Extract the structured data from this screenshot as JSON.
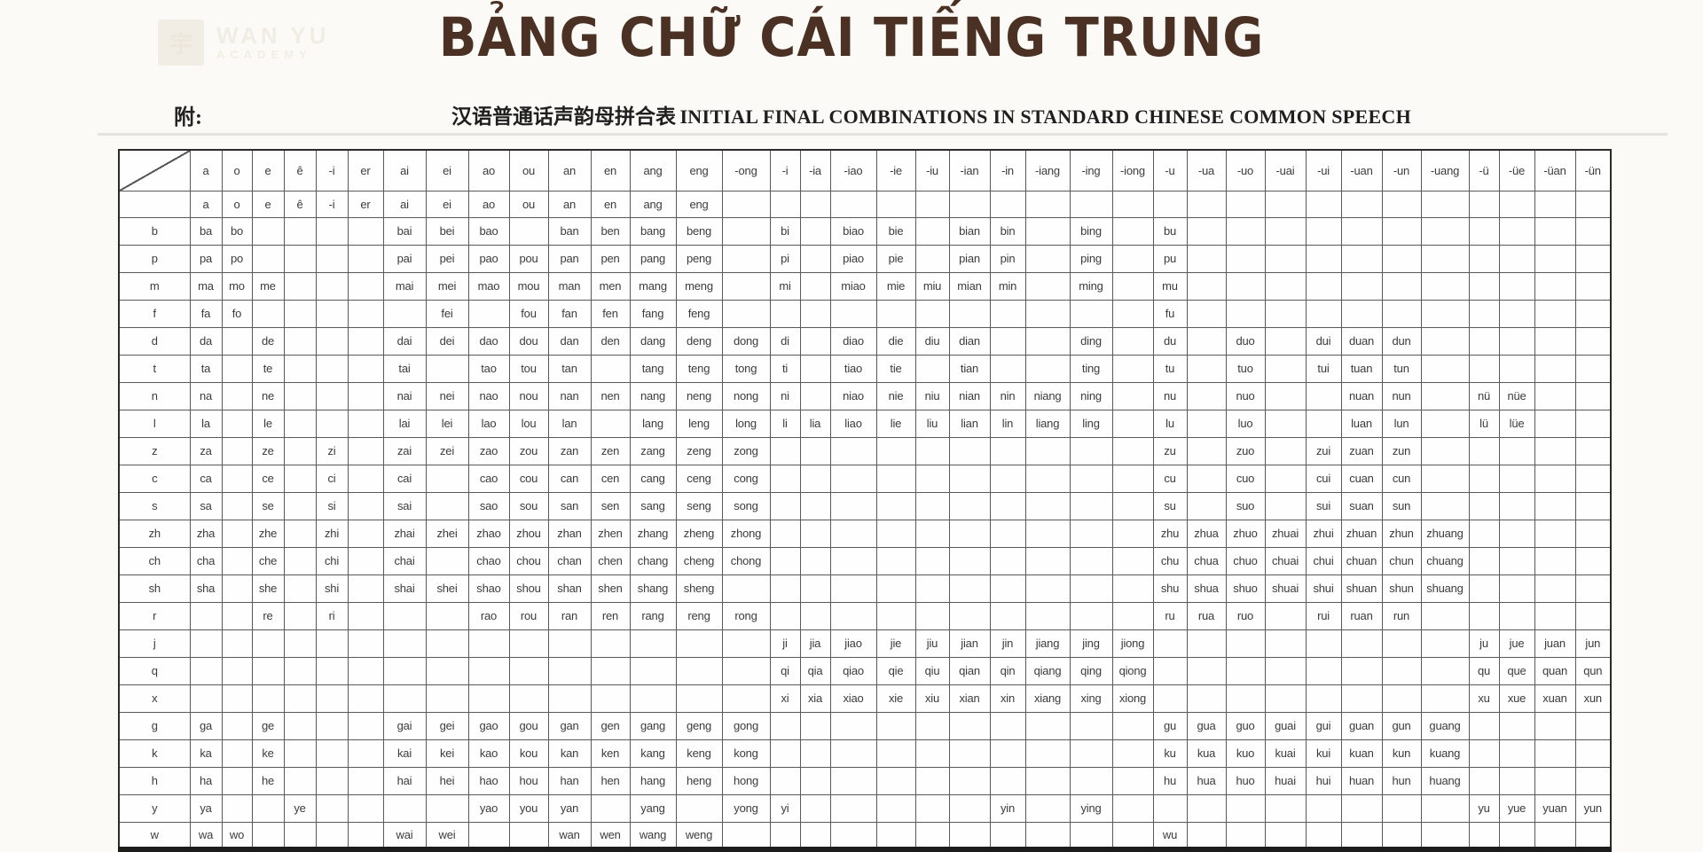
{
  "title": {
    "text": "BẢNG CHỮ CÁI TIẾNG TRUNG",
    "color": "#4b3123"
  },
  "watermark": {
    "logo_char": "宇",
    "line1": "WAN YU",
    "line2": "ACADEMY"
  },
  "subtitle": {
    "prefix": "附:",
    "zh": "汉语普通话声韵母拼合表",
    "en": "INITIAL FINAL COMBINATIONS IN STANDARD CHINESE COMMON SPEECH"
  },
  "table": {
    "finals": [
      "a",
      "o",
      "e",
      "ê",
      "-i",
      "er",
      "ai",
      "ei",
      "ao",
      "ou",
      "an",
      "en",
      "ang",
      "eng",
      "-ong",
      "-i",
      "-ia",
      "-iao",
      "-ie",
      "-iu",
      "-ian",
      "-in",
      "-iang",
      "-ing",
      "-iong",
      "-u",
      "-ua",
      "-uo",
      "-uai",
      "-ui",
      "-uan",
      "-un",
      "-uang",
      "-ü",
      "-üe",
      "-üan",
      "-ün"
    ],
    "standalone": [
      "a",
      "o",
      "e",
      "ê",
      "-i",
      "er",
      "ai",
      "ei",
      "ao",
      "ou",
      "an",
      "en",
      "ang",
      "eng",
      "",
      "",
      "",
      "",
      "",
      "",
      "",
      "",
      "",
      "",
      "",
      "",
      "",
      "",
      "",
      "",
      "",
      "",
      "",
      "",
      "",
      "",
      ""
    ],
    "rows": [
      {
        "initial": "b",
        "cells": [
          "ba",
          "bo",
          "",
          "",
          "",
          "",
          "bai",
          "bei",
          "bao",
          "",
          "ban",
          "ben",
          "bang",
          "beng",
          "",
          "bi",
          "",
          "biao",
          "bie",
          "",
          "bian",
          "bin",
          "",
          "bing",
          "",
          "bu",
          "",
          "",
          "",
          "",
          "",
          "",
          "",
          "",
          "",
          "",
          ""
        ]
      },
      {
        "initial": "p",
        "cells": [
          "pa",
          "po",
          "",
          "",
          "",
          "",
          "pai",
          "pei",
          "pao",
          "pou",
          "pan",
          "pen",
          "pang",
          "peng",
          "",
          "pi",
          "",
          "piao",
          "pie",
          "",
          "pian",
          "pin",
          "",
          "ping",
          "",
          "pu",
          "",
          "",
          "",
          "",
          "",
          "",
          "",
          "",
          "",
          "",
          ""
        ]
      },
      {
        "initial": "m",
        "cells": [
          "ma",
          "mo",
          "me",
          "",
          "",
          "",
          "mai",
          "mei",
          "mao",
          "mou",
          "man",
          "men",
          "mang",
          "meng",
          "",
          "mi",
          "",
          "miao",
          "mie",
          "miu",
          "mian",
          "min",
          "",
          "ming",
          "",
          "mu",
          "",
          "",
          "",
          "",
          "",
          "",
          "",
          "",
          "",
          "",
          ""
        ]
      },
      {
        "initial": "f",
        "cells": [
          "fa",
          "fo",
          "",
          "",
          "",
          "",
          "",
          "fei",
          "",
          "fou",
          "fan",
          "fen",
          "fang",
          "feng",
          "",
          "",
          "",
          "",
          "",
          "",
          "",
          "",
          "",
          "",
          "",
          "fu",
          "",
          "",
          "",
          "",
          "",
          "",
          "",
          "",
          "",
          "",
          ""
        ]
      },
      {
        "initial": "d",
        "cells": [
          "da",
          "",
          "de",
          "",
          "",
          "",
          "dai",
          "dei",
          "dao",
          "dou",
          "dan",
          "den",
          "dang",
          "deng",
          "dong",
          "di",
          "",
          "diao",
          "die",
          "diu",
          "dian",
          "",
          "",
          "ding",
          "",
          "du",
          "",
          "duo",
          "",
          "dui",
          "duan",
          "dun",
          "",
          "",
          "",
          "",
          ""
        ]
      },
      {
        "initial": "t",
        "cells": [
          "ta",
          "",
          "te",
          "",
          "",
          "",
          "tai",
          "",
          "tao",
          "tou",
          "tan",
          "",
          "tang",
          "teng",
          "tong",
          "ti",
          "",
          "tiao",
          "tie",
          "",
          "tian",
          "",
          "",
          "ting",
          "",
          "tu",
          "",
          "tuo",
          "",
          "tui",
          "tuan",
          "tun",
          "",
          "",
          "",
          "",
          ""
        ]
      },
      {
        "initial": "n",
        "cells": [
          "na",
          "",
          "ne",
          "",
          "",
          "",
          "nai",
          "nei",
          "nao",
          "nou",
          "nan",
          "nen",
          "nang",
          "neng",
          "nong",
          "ni",
          "",
          "niao",
          "nie",
          "niu",
          "nian",
          "nin",
          "niang",
          "ning",
          "",
          "nu",
          "",
          "nuo",
          "",
          "",
          "nuan",
          "nun",
          "",
          "nü",
          "nüe",
          "",
          ""
        ]
      },
      {
        "initial": "l",
        "cells": [
          "la",
          "",
          "le",
          "",
          "",
          "",
          "lai",
          "lei",
          "lao",
          "lou",
          "lan",
          "",
          "lang",
          "leng",
          "long",
          "li",
          "lia",
          "liao",
          "lie",
          "liu",
          "lian",
          "lin",
          "liang",
          "ling",
          "",
          "lu",
          "",
          "luo",
          "",
          "",
          "luan",
          "lun",
          "",
          "lü",
          "lüe",
          "",
          ""
        ]
      },
      {
        "initial": "z",
        "cells": [
          "za",
          "",
          "ze",
          "",
          "zi",
          "",
          "zai",
          "zei",
          "zao",
          "zou",
          "zan",
          "zen",
          "zang",
          "zeng",
          "zong",
          "",
          "",
          "",
          "",
          "",
          "",
          "",
          "",
          "",
          "",
          "zu",
          "",
          "zuo",
          "",
          "zui",
          "zuan",
          "zun",
          "",
          "",
          "",
          "",
          ""
        ]
      },
      {
        "initial": "c",
        "cells": [
          "ca",
          "",
          "ce",
          "",
          "ci",
          "",
          "cai",
          "",
          "cao",
          "cou",
          "can",
          "cen",
          "cang",
          "ceng",
          "cong",
          "",
          "",
          "",
          "",
          "",
          "",
          "",
          "",
          "",
          "",
          "cu",
          "",
          "cuo",
          "",
          "cui",
          "cuan",
          "cun",
          "",
          "",
          "",
          "",
          ""
        ]
      },
      {
        "initial": "s",
        "cells": [
          "sa",
          "",
          "se",
          "",
          "si",
          "",
          "sai",
          "",
          "sao",
          "sou",
          "san",
          "sen",
          "sang",
          "seng",
          "song",
          "",
          "",
          "",
          "",
          "",
          "",
          "",
          "",
          "",
          "",
          "su",
          "",
          "suo",
          "",
          "sui",
          "suan",
          "sun",
          "",
          "",
          "",
          "",
          ""
        ]
      },
      {
        "initial": "zh",
        "cells": [
          "zha",
          "",
          "zhe",
          "",
          "zhi",
          "",
          "zhai",
          "zhei",
          "zhao",
          "zhou",
          "zhan",
          "zhen",
          "zhang",
          "zheng",
          "zhong",
          "",
          "",
          "",
          "",
          "",
          "",
          "",
          "",
          "",
          "",
          "zhu",
          "zhua",
          "zhuo",
          "zhuai",
          "zhui",
          "zhuan",
          "zhun",
          "zhuang",
          "",
          "",
          "",
          ""
        ]
      },
      {
        "initial": "ch",
        "cells": [
          "cha",
          "",
          "che",
          "",
          "chi",
          "",
          "chai",
          "",
          "chao",
          "chou",
          "chan",
          "chen",
          "chang",
          "cheng",
          "chong",
          "",
          "",
          "",
          "",
          "",
          "",
          "",
          "",
          "",
          "",
          "chu",
          "chua",
          "chuo",
          "chuai",
          "chui",
          "chuan",
          "chun",
          "chuang",
          "",
          "",
          "",
          ""
        ]
      },
      {
        "initial": "sh",
        "cells": [
          "sha",
          "",
          "she",
          "",
          "shi",
          "",
          "shai",
          "shei",
          "shao",
          "shou",
          "shan",
          "shen",
          "shang",
          "sheng",
          "",
          "",
          "",
          "",
          "",
          "",
          "",
          "",
          "",
          "",
          "",
          "shu",
          "shua",
          "shuo",
          "shuai",
          "shui",
          "shuan",
          "shun",
          "shuang",
          "",
          "",
          "",
          ""
        ]
      },
      {
        "initial": "r",
        "cells": [
          "",
          "",
          "re",
          "",
          "ri",
          "",
          "",
          "",
          "rao",
          "rou",
          "ran",
          "ren",
          "rang",
          "reng",
          "rong",
          "",
          "",
          "",
          "",
          "",
          "",
          "",
          "",
          "",
          "",
          "ru",
          "rua",
          "ruo",
          "",
          "rui",
          "ruan",
          "run",
          "",
          "",
          "",
          "",
          ""
        ]
      },
      {
        "initial": "j",
        "cells": [
          "",
          "",
          "",
          "",
          "",
          "",
          "",
          "",
          "",
          "",
          "",
          "",
          "",
          "",
          "",
          "ji",
          "jia",
          "jiao",
          "jie",
          "jiu",
          "jian",
          "jin",
          "jiang",
          "jing",
          "jiong",
          "",
          "",
          "",
          "",
          "",
          "",
          "",
          "",
          "ju",
          "jue",
          "juan",
          "jun"
        ]
      },
      {
        "initial": "q",
        "cells": [
          "",
          "",
          "",
          "",
          "",
          "",
          "",
          "",
          "",
          "",
          "",
          "",
          "",
          "",
          "",
          "qi",
          "qia",
          "qiao",
          "qie",
          "qiu",
          "qian",
          "qin",
          "qiang",
          "qing",
          "qiong",
          "",
          "",
          "",
          "",
          "",
          "",
          "",
          "",
          "qu",
          "que",
          "quan",
          "qun"
        ]
      },
      {
        "initial": "x",
        "cells": [
          "",
          "",
          "",
          "",
          "",
          "",
          "",
          "",
          "",
          "",
          "",
          "",
          "",
          "",
          "",
          "xi",
          "xia",
          "xiao",
          "xie",
          "xiu",
          "xian",
          "xin",
          "xiang",
          "xing",
          "xiong",
          "",
          "",
          "",
          "",
          "",
          "",
          "",
          "",
          "xu",
          "xue",
          "xuan",
          "xun"
        ]
      },
      {
        "initial": "g",
        "cells": [
          "ga",
          "",
          "ge",
          "",
          "",
          "",
          "gai",
          "gei",
          "gao",
          "gou",
          "gan",
          "gen",
          "gang",
          "geng",
          "gong",
          "",
          "",
          "",
          "",
          "",
          "",
          "",
          "",
          "",
          "",
          "gu",
          "gua",
          "guo",
          "guai",
          "gui",
          "guan",
          "gun",
          "guang",
          "",
          "",
          "",
          ""
        ]
      },
      {
        "initial": "k",
        "cells": [
          "ka",
          "",
          "ke",
          "",
          "",
          "",
          "kai",
          "kei",
          "kao",
          "kou",
          "kan",
          "ken",
          "kang",
          "keng",
          "kong",
          "",
          "",
          "",
          "",
          "",
          "",
          "",
          "",
          "",
          "",
          "ku",
          "kua",
          "kuo",
          "kuai",
          "kui",
          "kuan",
          "kun",
          "kuang",
          "",
          "",
          "",
          ""
        ]
      },
      {
        "initial": "h",
        "cells": [
          "ha",
          "",
          "he",
          "",
          "",
          "",
          "hai",
          "hei",
          "hao",
          "hou",
          "han",
          "hen",
          "hang",
          "heng",
          "hong",
          "",
          "",
          "",
          "",
          "",
          "",
          "",
          "",
          "",
          "",
          "hu",
          "hua",
          "huo",
          "huai",
          "hui",
          "huan",
          "hun",
          "huang",
          "",
          "",
          "",
          ""
        ]
      },
      {
        "initial": "y",
        "cells": [
          "ya",
          "",
          "",
          "ye",
          "",
          "",
          "",
          "",
          "yao",
          "you",
          "yan",
          "",
          "yang",
          "",
          "yong",
          "yi",
          "",
          "",
          "",
          "",
          "",
          "yin",
          "",
          "ying",
          "",
          "",
          "",
          "",
          "",
          "",
          "",
          "",
          "",
          "yu",
          "yue",
          "yuan",
          "yun"
        ]
      },
      {
        "initial": "w",
        "cells": [
          "wa",
          "wo",
          "",
          "",
          "",
          "",
          "wai",
          "wei",
          "",
          "",
          "wan",
          "wen",
          "wang",
          "weng",
          "",
          "",
          "",
          "",
          "",
          "",
          "",
          "",
          "",
          "",
          "",
          "wu",
          "",
          "",
          "",
          "",
          "",
          "",
          "",
          "",
          "",
          "",
          ""
        ]
      }
    ]
  }
}
